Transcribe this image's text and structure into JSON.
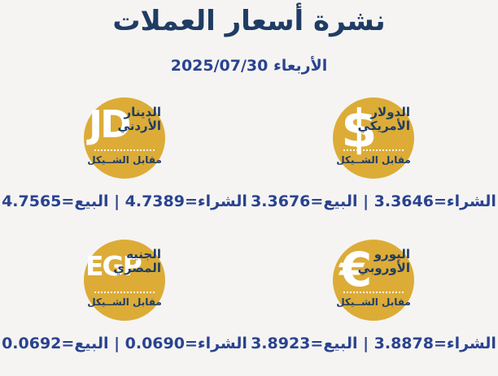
{
  "colors": {
    "background": "#F5F4F2",
    "gold": "#DCAC37",
    "navy": "#1F3C64",
    "blue": "#2A4390",
    "white": "#FFFFFF"
  },
  "header": {
    "title": "نشرة أسعار العملات",
    "date": "الأربعاء 2025/07/30"
  },
  "currencies": [
    {
      "code": "USD",
      "symbol": "$",
      "name_line1": "الدولار",
      "name_line2": "الأمريكي",
      "vs_label": "مقابل الشــيكل",
      "buy_label": "الشراء",
      "sell_label": "البيع",
      "buy": "3.3646",
      "sell": "3.3676",
      "rate_line": "الشراء=3.3646 | البيع=3.3676"
    },
    {
      "code": "JOD",
      "symbol": "JD",
      "name_line1": "الدينار",
      "name_line2": "الأردني",
      "vs_label": "مقابل الشــيكل",
      "buy_label": "الشراء",
      "sell_label": "البيع",
      "buy": "4.7389",
      "sell": "4.7565",
      "rate_line": "الشراء=4.7389 | البيع=4.7565"
    },
    {
      "code": "EUR",
      "symbol": "€",
      "name_line1": "اليورو",
      "name_line2": "الأوروبي",
      "vs_label": "مقابل الشــيكل",
      "buy_label": "الشراء",
      "sell_label": "البيع",
      "buy": "3.8878",
      "sell": "3.8923",
      "rate_line": "الشراء=3.8878 | البيع=3.8923"
    },
    {
      "code": "EGP",
      "symbol": "EGP",
      "name_line1": "الجنيه",
      "name_line2": "المصري",
      "vs_label": "مقابل الشــيكل",
      "buy_label": "الشراء",
      "sell_label": "البيع",
      "buy": "0.0690",
      "sell": "0.0692",
      "rate_line": "الشراء=0.0690 | البيع=0.0692"
    }
  ]
}
